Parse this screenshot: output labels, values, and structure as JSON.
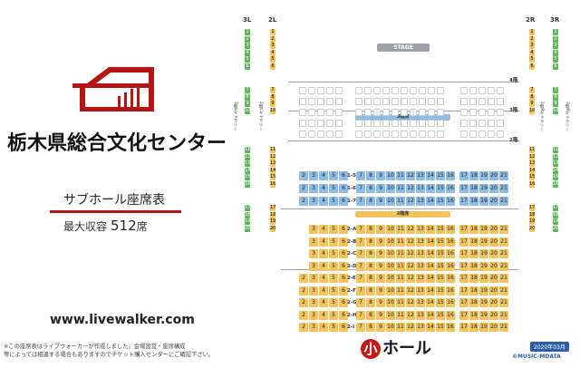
{
  "venue": {
    "name": "栃木県総合文化センター",
    "hall": "サブホール座席表",
    "capacity_label": "最大収容",
    "capacity_value": "512",
    "capacity_unit": "席",
    "url": "www.livewalker.com",
    "note_line1": "※この座席表はライブウォーカーが作成しました。会場設営・座席構成",
    "note_line2": "等によっては相違する場合もありますのでチケット購入センターにご確認下さい。",
    "small_hall_char": "小",
    "small_hall_rest": "ホール",
    "date": "2020年03月",
    "copyright": "©MUSIC-MDATA"
  },
  "colors": {
    "accent_red": "#b51515",
    "green": "#5fb65a",
    "yellow": "#f3c35c",
    "blue": "#8dbce6",
    "badge_blue": "#2b5ea8"
  },
  "seatmap": {
    "stage_label": "STAGE",
    "col_headers": [
      "3L",
      "2L",
      "2R",
      "3R"
    ],
    "floor_labels": [
      "4階",
      "3階",
      "2階"
    ],
    "band_3f": "3階席",
    "band_2f": "2階席",
    "left_3l": [
      "1",
      "2",
      "3",
      "4",
      "5",
      "6",
      "7",
      "8",
      "9",
      "10",
      "11",
      "12",
      "13",
      "14",
      "15",
      "16",
      "17",
      "18",
      "19",
      "20"
    ],
    "left_2l": [
      "1",
      "2",
      "3",
      "4",
      "5",
      "6",
      "7",
      "8",
      "9",
      "10",
      "11",
      "12",
      "13",
      "14",
      "15",
      "16",
      "17",
      "18",
      "19",
      "20"
    ],
    "right_2r": [
      "1",
      "2",
      "3",
      "4",
      "5",
      "6",
      "7",
      "8",
      "9",
      "10",
      "11",
      "12",
      "13",
      "14",
      "15",
      "16",
      "17",
      "18",
      "19",
      "20"
    ],
    "right_3r": [
      "1",
      "2",
      "3",
      "4",
      "5",
      "6",
      "7",
      "8",
      "9",
      "10",
      "11",
      "12",
      "13",
      "14",
      "15",
      "16",
      "17",
      "18",
      "19",
      "20"
    ],
    "gallery_3l": "3階Lギャラリー",
    "gallery_2l": "2階Lギャラリー",
    "gallery_2r": "2階Rギャラリー",
    "gallery_3r": "3階Rギャラリー",
    "blue_rows": [
      {
        "label": "1-5",
        "left": [
          "2",
          "3",
          "4",
          "5",
          "6"
        ],
        "mid": [
          "7",
          "8",
          "9",
          "10",
          "11",
          "12",
          "13",
          "14",
          "15",
          "16"
        ],
        "right": [
          "17",
          "18",
          "19",
          "20",
          "21"
        ]
      },
      {
        "label": "1-6",
        "left": [
          "2",
          "3",
          "4",
          "5",
          "6"
        ],
        "mid": [
          "7",
          "8",
          "9",
          "10",
          "11",
          "12",
          "13",
          "14",
          "15",
          "16"
        ],
        "right": [
          "17",
          "18",
          "19",
          "20",
          "21"
        ]
      },
      {
        "label": "1-7",
        "left": [
          "2",
          "3",
          "4",
          "5",
          "6"
        ],
        "mid": [
          "7",
          "8",
          "9",
          "10",
          "11",
          "12",
          "13",
          "14",
          "15",
          "16"
        ],
        "right": [
          "17",
          "18",
          "19",
          "20",
          "21"
        ]
      }
    ],
    "yellow_rows": [
      {
        "label": "2-A",
        "left": [
          "3",
          "4",
          "5",
          "6"
        ],
        "mid": [
          "7",
          "8",
          "9",
          "10",
          "11",
          "12",
          "13",
          "14",
          "15",
          "16"
        ],
        "right": [
          "17",
          "18",
          "19",
          "20",
          "21"
        ]
      },
      {
        "label": "2-B",
        "left": [
          "3",
          "4",
          "5",
          "6"
        ],
        "mid": [
          "7",
          "8",
          "9",
          "10",
          "11",
          "12",
          "13",
          "14",
          "15",
          "16"
        ],
        "right": [
          "17",
          "18",
          "19",
          "20",
          "21"
        ]
      },
      {
        "label": "2-C",
        "left": [
          "3",
          "4",
          "5",
          "6"
        ],
        "mid": [
          "7",
          "8",
          "9",
          "10",
          "11",
          "12",
          "13",
          "14",
          "15",
          "16"
        ],
        "right": [
          "17",
          "18",
          "19",
          "20",
          "21"
        ]
      },
      {
        "label": "2-D",
        "left": [
          "3",
          "4",
          "5",
          "6"
        ],
        "mid": [
          "7",
          "8",
          "9",
          "10",
          "11",
          "12",
          "13",
          "14",
          "15",
          "16"
        ],
        "right": [
          "17",
          "18",
          "19",
          "20",
          "21"
        ]
      },
      {
        "label": "2-E",
        "left": [
          "2",
          "3",
          "4",
          "5",
          "6"
        ],
        "mid": [
          "7",
          "8",
          "9",
          "10",
          "11",
          "12",
          "13",
          "14",
          "15",
          "16"
        ],
        "right": [
          "17",
          "18",
          "19",
          "20",
          "21"
        ]
      },
      {
        "label": "2-F",
        "left": [
          "2",
          "3",
          "4",
          "5",
          "6"
        ],
        "mid": [
          "7",
          "8",
          "9",
          "10",
          "11",
          "12",
          "13",
          "14",
          "15",
          "16"
        ],
        "right": [
          "17",
          "18",
          "19",
          "20",
          "21"
        ]
      },
      {
        "label": "2-G",
        "left": [
          "2",
          "3",
          "4",
          "5",
          "6"
        ],
        "mid": [
          "7",
          "8",
          "9",
          "10",
          "11",
          "12",
          "13",
          "14",
          "15",
          "16"
        ],
        "right": [
          "17",
          "18",
          "19",
          "20",
          "21"
        ]
      },
      {
        "label": "2-H",
        "left": [
          "2",
          "3",
          "4",
          "5",
          "6"
        ],
        "mid": [
          "7",
          "8",
          "9",
          "10",
          "11",
          "12",
          "13",
          "14",
          "15",
          "16"
        ],
        "right": [
          "17",
          "18",
          "19",
          "20",
          "21"
        ]
      },
      {
        "label": "2-I",
        "left": [
          "2",
          "3",
          "4",
          "5",
          "6"
        ],
        "mid": [
          "7",
          "8",
          "9",
          "10",
          "11",
          "12",
          "13",
          "14",
          "15",
          "16"
        ],
        "right": [
          "17",
          "18",
          "19",
          "20",
          "21"
        ]
      }
    ]
  }
}
